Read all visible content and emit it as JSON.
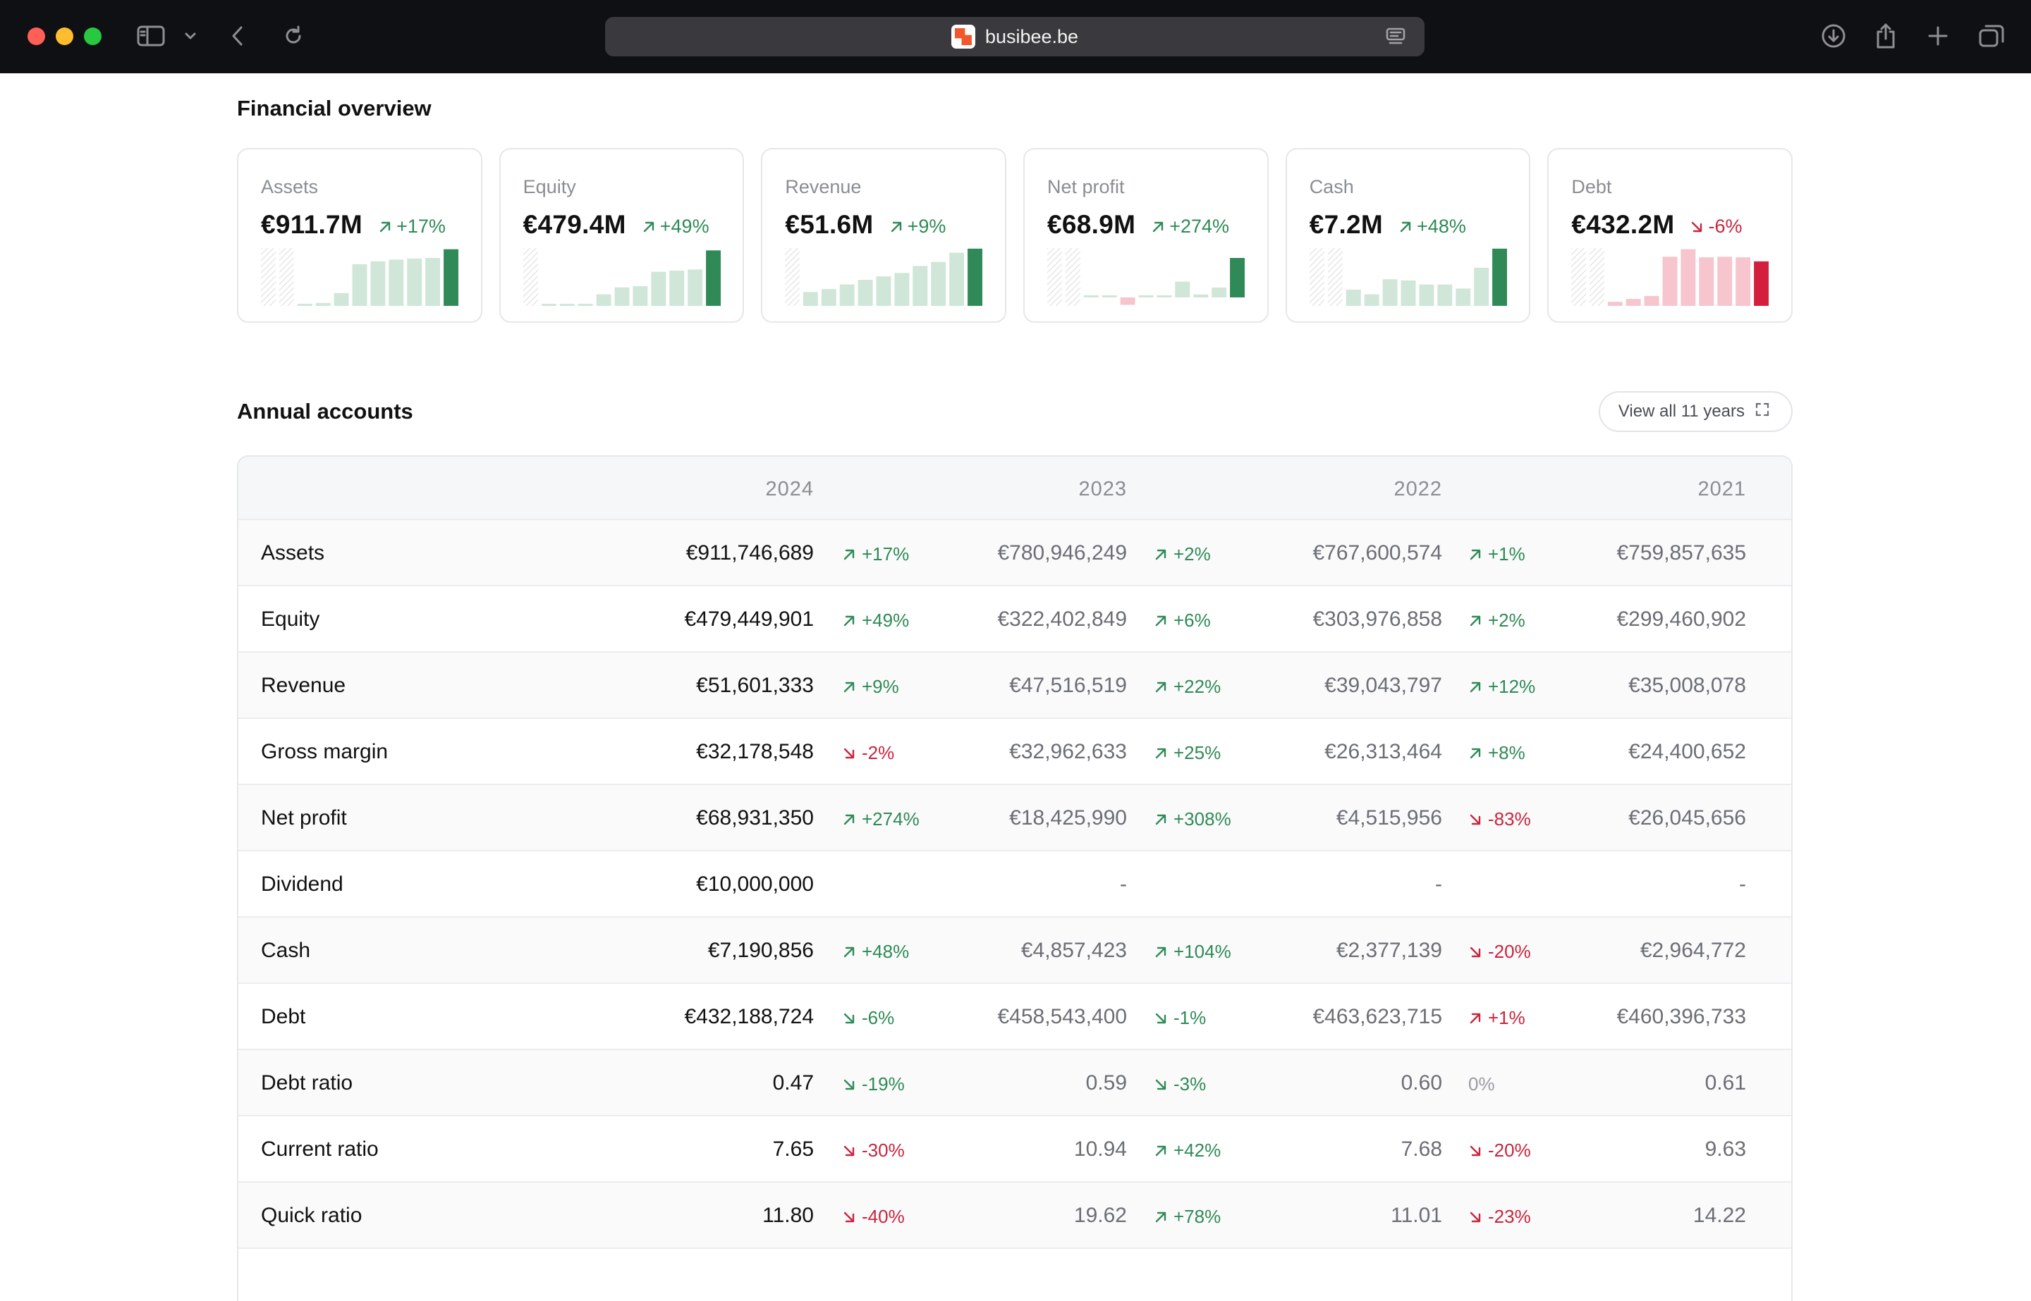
{
  "browser": {
    "url": "busibee.be"
  },
  "colors": {
    "up": "#2f8a57",
    "down": "#c8253e",
    "bar_up_light": "#cfe6d8",
    "bar_up_strong": "#2f8a57",
    "bar_down_light": "#f6c5cd",
    "bar_down_strong": "#d41f3c"
  },
  "financial_overview": {
    "title": "Financial overview",
    "cards": [
      {
        "label": "Assets",
        "value": "€911.7M",
        "change": "+17%",
        "direction": "up",
        "bars": [
          0.02,
          0.05,
          0.22,
          0.72,
          0.77,
          0.8,
          0.82,
          0.83,
          0.98
        ],
        "bar_color": "green"
      },
      {
        "label": "Equity",
        "value": "€479.4M",
        "change": "+49%",
        "direction": "up",
        "bars": [
          0,
          0.01,
          0.02,
          0.2,
          0.32,
          0.34,
          0.59,
          0.61,
          0.63,
          0.96
        ],
        "bar_color": "green"
      },
      {
        "label": "Revenue",
        "value": "€51.6M",
        "change": "+9%",
        "direction": "up",
        "bars": [
          0.24,
          0.29,
          0.37,
          0.45,
          0.51,
          0.57,
          0.69,
          0.76,
          0.92,
          0.99
        ],
        "bar_color": "green"
      },
      {
        "label": "Net profit",
        "value": "€68.9M",
        "change": "+274%",
        "direction": "up",
        "bars": [
          0.02,
          0.02,
          -0.15,
          0.02,
          0.02,
          0.32,
          0.06,
          0.2,
          0.8
        ],
        "bar_color": "mixed"
      },
      {
        "label": "Cash",
        "value": "€7.2M",
        "change": "+48%",
        "direction": "up",
        "bars": [
          0.28,
          0.2,
          0.46,
          0.44,
          0.37,
          0.37,
          0.3,
          0.66,
          0.99
        ],
        "bar_color": "green"
      },
      {
        "label": "Debt",
        "value": "€432.2M",
        "change": "-6%",
        "direction": "down",
        "bars": [
          0.07,
          0.12,
          0.17,
          0.85,
          0.98,
          0.84,
          0.85,
          0.84,
          0.77
        ],
        "bar_color": "red"
      }
    ]
  },
  "annual_accounts": {
    "title": "Annual accounts",
    "view_all_label": "View all 11 years",
    "years": [
      "2024",
      "2023",
      "2022",
      "2021"
    ],
    "rows": [
      {
        "label": "Assets",
        "values": [
          "€911,746,689",
          "€780,946,249",
          "€767,600,574",
          "€759,857,635"
        ],
        "changes": [
          {
            "text": "+17%",
            "dir": "up",
            "tone": "up"
          },
          {
            "text": "+2%",
            "dir": "up",
            "tone": "up"
          },
          {
            "text": "+1%",
            "dir": "up",
            "tone": "up"
          }
        ]
      },
      {
        "label": "Equity",
        "values": [
          "€479,449,901",
          "€322,402,849",
          "€303,976,858",
          "€299,460,902"
        ],
        "changes": [
          {
            "text": "+49%",
            "dir": "up",
            "tone": "up"
          },
          {
            "text": "+6%",
            "dir": "up",
            "tone": "up"
          },
          {
            "text": "+2%",
            "dir": "up",
            "tone": "up"
          }
        ]
      },
      {
        "label": "Revenue",
        "values": [
          "€51,601,333",
          "€47,516,519",
          "€39,043,797",
          "€35,008,078"
        ],
        "changes": [
          {
            "text": "+9%",
            "dir": "up",
            "tone": "up"
          },
          {
            "text": "+22%",
            "dir": "up",
            "tone": "up"
          },
          {
            "text": "+12%",
            "dir": "up",
            "tone": "up"
          }
        ]
      },
      {
        "label": "Gross margin",
        "values": [
          "€32,178,548",
          "€32,962,633",
          "€26,313,464",
          "€24,400,652"
        ],
        "changes": [
          {
            "text": "-2%",
            "dir": "down",
            "tone": "down"
          },
          {
            "text": "+25%",
            "dir": "up",
            "tone": "up"
          },
          {
            "text": "+8%",
            "dir": "up",
            "tone": "up"
          }
        ]
      },
      {
        "label": "Net profit",
        "values": [
          "€68,931,350",
          "€18,425,990",
          "€4,515,956",
          "€26,045,656"
        ],
        "changes": [
          {
            "text": "+274%",
            "dir": "up",
            "tone": "up"
          },
          {
            "text": "+308%",
            "dir": "up",
            "tone": "up"
          },
          {
            "text": "-83%",
            "dir": "down",
            "tone": "down"
          }
        ]
      },
      {
        "label": "Dividend",
        "values": [
          "€10,000,000",
          "-",
          "-",
          "-"
        ],
        "changes": [
          null,
          null,
          null
        ]
      },
      {
        "label": "Cash",
        "values": [
          "€7,190,856",
          "€4,857,423",
          "€2,377,139",
          "€2,964,772"
        ],
        "changes": [
          {
            "text": "+48%",
            "dir": "up",
            "tone": "up"
          },
          {
            "text": "+104%",
            "dir": "up",
            "tone": "up"
          },
          {
            "text": "-20%",
            "dir": "down",
            "tone": "down"
          }
        ]
      },
      {
        "label": "Debt",
        "values": [
          "€432,188,724",
          "€458,543,400",
          "€463,623,715",
          "€460,396,733"
        ],
        "changes": [
          {
            "text": "-6%",
            "dir": "down",
            "tone": "up"
          },
          {
            "text": "-1%",
            "dir": "down",
            "tone": "up"
          },
          {
            "text": "+1%",
            "dir": "up",
            "tone": "down"
          }
        ]
      },
      {
        "label": "Debt ratio",
        "values": [
          "0.47",
          "0.59",
          "0.60",
          "0.61"
        ],
        "changes": [
          {
            "text": "-19%",
            "dir": "down",
            "tone": "up"
          },
          {
            "text": "-3%",
            "dir": "down",
            "tone": "up"
          },
          {
            "text": "0%",
            "dir": "none",
            "tone": "neutral"
          }
        ]
      },
      {
        "label": "Current ratio",
        "values": [
          "7.65",
          "10.94",
          "7.68",
          "9.63"
        ],
        "changes": [
          {
            "text": "-30%",
            "dir": "down",
            "tone": "down"
          },
          {
            "text": "+42%",
            "dir": "up",
            "tone": "up"
          },
          {
            "text": "-20%",
            "dir": "down",
            "tone": "down"
          }
        ]
      },
      {
        "label": "Quick ratio",
        "values": [
          "11.80",
          "19.62",
          "11.01",
          "14.22"
        ],
        "changes": [
          {
            "text": "-40%",
            "dir": "down",
            "tone": "down"
          },
          {
            "text": "+78%",
            "dir": "up",
            "tone": "up"
          },
          {
            "text": "-23%",
            "dir": "down",
            "tone": "down"
          }
        ]
      }
    ]
  }
}
